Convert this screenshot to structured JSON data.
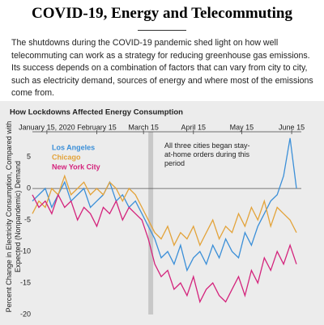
{
  "header": {
    "title": "COVID-19, Energy and Telecommuting",
    "intro": "The shutdowns during the COVID-19 pandemic shed light on how well telecommuting can work as a strategy for reducing greenhouse gas emissions. Its success depends on a combination of factors that can vary from city to city, such as electricity demand, sources of energy and where most of the emissions come from."
  },
  "chart_data": {
    "type": "line",
    "title": "How Lockdowns Affected Energy Consumption",
    "y_label": "Percent Change in Electricity Consumption, Compared with Expected (Nonpandemic) Demand",
    "annotation": "All three cities began stay-at-home orders during this period",
    "shaded_x": [
      "2020-03-18",
      "2020-03-21"
    ],
    "x": [
      "2020-01-06",
      "2020-01-10",
      "2020-01-14",
      "2020-01-18",
      "2020-01-22",
      "2020-01-26",
      "2020-01-30",
      "2020-02-03",
      "2020-02-07",
      "2020-02-11",
      "2020-02-15",
      "2020-02-19",
      "2020-02-23",
      "2020-02-27",
      "2020-03-02",
      "2020-03-06",
      "2020-03-10",
      "2020-03-14",
      "2020-03-18",
      "2020-03-22",
      "2020-03-26",
      "2020-03-30",
      "2020-04-03",
      "2020-04-07",
      "2020-04-11",
      "2020-04-15",
      "2020-04-19",
      "2020-04-23",
      "2020-04-27",
      "2020-05-01",
      "2020-05-05",
      "2020-05-09",
      "2020-05-13",
      "2020-05-17",
      "2020-05-21",
      "2020-05-25",
      "2020-05-29",
      "2020-06-02",
      "2020-06-06",
      "2020-06-10",
      "2020-06-14",
      "2020-06-18"
    ],
    "series": [
      {
        "name": "Los Angeles",
        "color": "#3b8fd8",
        "values": [
          -2,
          -1,
          0,
          -3,
          -1,
          1,
          -2,
          -1,
          0,
          -3,
          -2,
          -1,
          1,
          -2,
          -1,
          -3,
          -2,
          -4,
          -6,
          -8,
          -11,
          -10,
          -12,
          -9,
          -13,
          -11,
          -10,
          -12,
          -9,
          -11,
          -8,
          -10,
          -11,
          -7,
          -9,
          -6,
          -4,
          -2,
          -1,
          2,
          8,
          0
        ]
      },
      {
        "name": "Chicago",
        "color": "#e3a33a",
        "values": [
          -4,
          -2,
          -3,
          0,
          -1,
          2,
          -1,
          0,
          1,
          -1,
          0,
          -1,
          1,
          0,
          -2,
          0,
          -1,
          -3,
          -5,
          -7,
          -8,
          -6,
          -9,
          -7,
          -8,
          -6,
          -9,
          -7,
          -5,
          -8,
          -6,
          -7,
          -4,
          -6,
          -3,
          -5,
          -2,
          -6,
          -3,
          -4,
          -5,
          -7
        ]
      },
      {
        "name": "New York City",
        "color": "#d4237c",
        "values": [
          -1,
          -3,
          -2,
          -4,
          -1,
          -3,
          -2,
          -5,
          -3,
          -4,
          -6,
          -3,
          -4,
          -2,
          -5,
          -3,
          -4,
          -5,
          -8,
          -12,
          -14,
          -13,
          -16,
          -15,
          -17,
          -14,
          -18,
          -16,
          -15,
          -17,
          -18,
          -16,
          -14,
          -17,
          -13,
          -15,
          -11,
          -13,
          -10,
          -12,
          -9,
          -12
        ]
      }
    ],
    "xlim": [
      "2020-01-06",
      "2020-06-21"
    ],
    "xticks": [
      {
        "value": "2020-01-15",
        "label": "January 15, 2020"
      },
      {
        "value": "2020-02-15",
        "label": "February 15"
      },
      {
        "value": "2020-03-15",
        "label": "March 15"
      },
      {
        "value": "2020-04-15",
        "label": "April 15"
      },
      {
        "value": "2020-05-15",
        "label": "May 15"
      },
      {
        "value": "2020-06-15",
        "label": "June 15"
      }
    ],
    "ylim": [
      -20,
      9
    ],
    "yticks": [
      -20,
      -15,
      -10,
      -5,
      0,
      5
    ],
    "legend": "top-left"
  }
}
